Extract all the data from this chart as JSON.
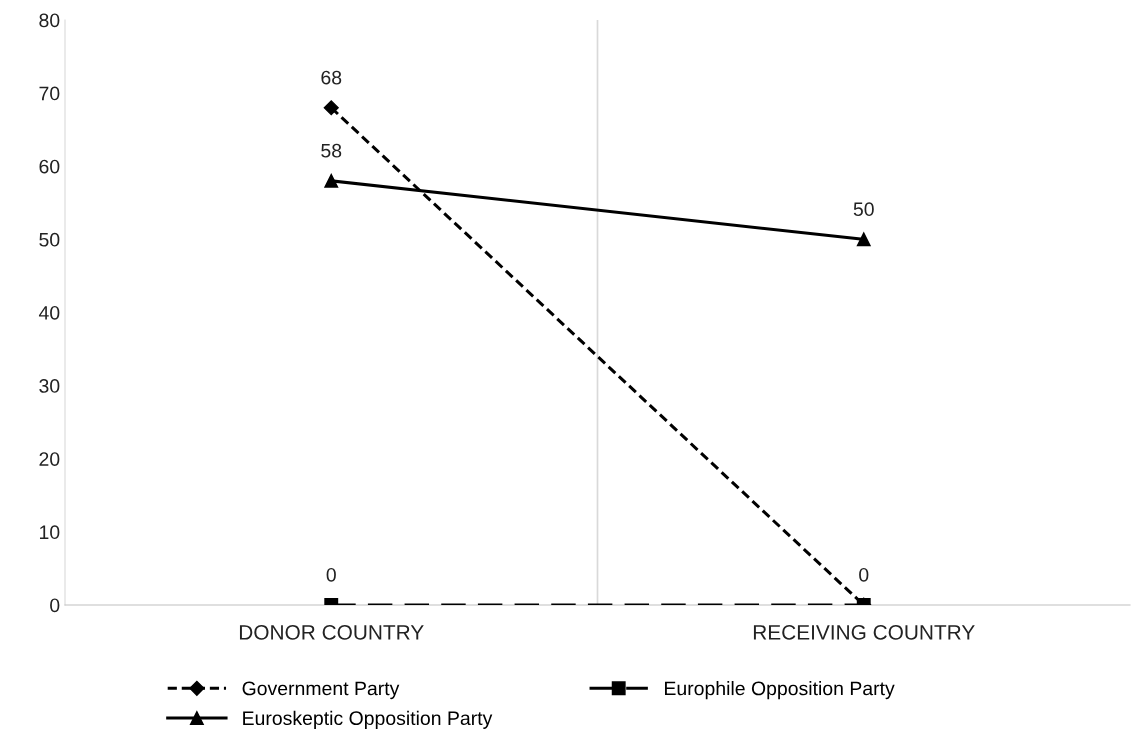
{
  "chart_data": {
    "type": "line",
    "categories": [
      "DONOR COUNTRY",
      "RECEIVING COUNTRY"
    ],
    "series": [
      {
        "name": "Government Party",
        "color": "#000000",
        "values": [
          68,
          0
        ],
        "value_labels": [
          "68",
          null
        ],
        "marker": "diamond",
        "line_style": "dotted"
      },
      {
        "name": "Europhile Opposition Party",
        "color": "#000000",
        "values": [
          0,
          0
        ],
        "value_labels": [
          "0",
          "0"
        ],
        "marker": "square",
        "line_style": "dashed"
      },
      {
        "name": "Euroskeptic Opposition Party",
        "color": "#000000",
        "values": [
          58,
          50
        ],
        "value_labels": [
          "58",
          "50"
        ],
        "marker": "triangle",
        "line_style": "solid"
      }
    ],
    "ylim": [
      0,
      80
    ],
    "yticks": [
      0,
      10,
      20,
      30,
      40,
      50,
      60,
      70,
      80
    ],
    "grid": "x",
    "legend": "bottom"
  }
}
